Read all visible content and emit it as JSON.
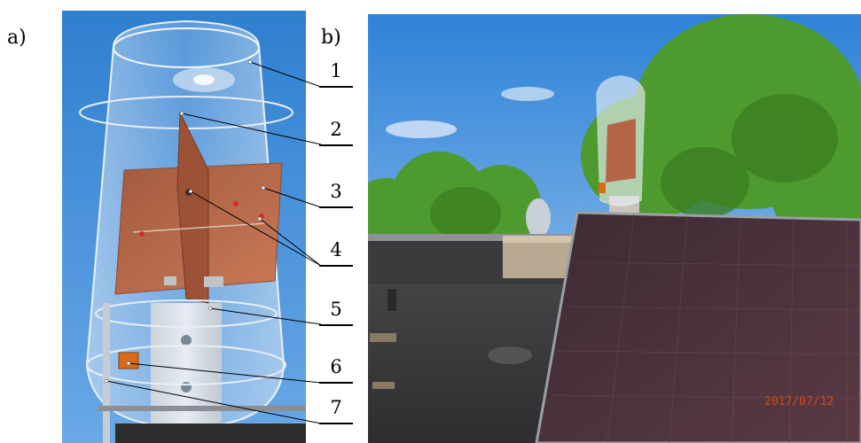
{
  "panels": {
    "a": {
      "label": "a)"
    },
    "b": {
      "label": "b)"
    }
  },
  "callouts": [
    {
      "number": "1",
      "target": "transparent-dome-top"
    },
    {
      "number": "2",
      "target": "vertical-copper-plate"
    },
    {
      "number": "3",
      "target": "horizontal-copper-plate"
    },
    {
      "number": "4",
      "target": "antenna-feed-connections"
    },
    {
      "number": "5",
      "target": "aluminium-mounting-profile"
    },
    {
      "number": "6",
      "target": "orange-connector-box"
    },
    {
      "number": "7",
      "target": "support-rod"
    }
  ],
  "photo_b": {
    "timestamp": "2017/07/12"
  },
  "colors": {
    "sky": "#3f8fdc",
    "copper": "#b56548",
    "foliage": "#4d9a2e",
    "solar_panel": "#4a2f38",
    "roof": "#3a3a3a"
  }
}
